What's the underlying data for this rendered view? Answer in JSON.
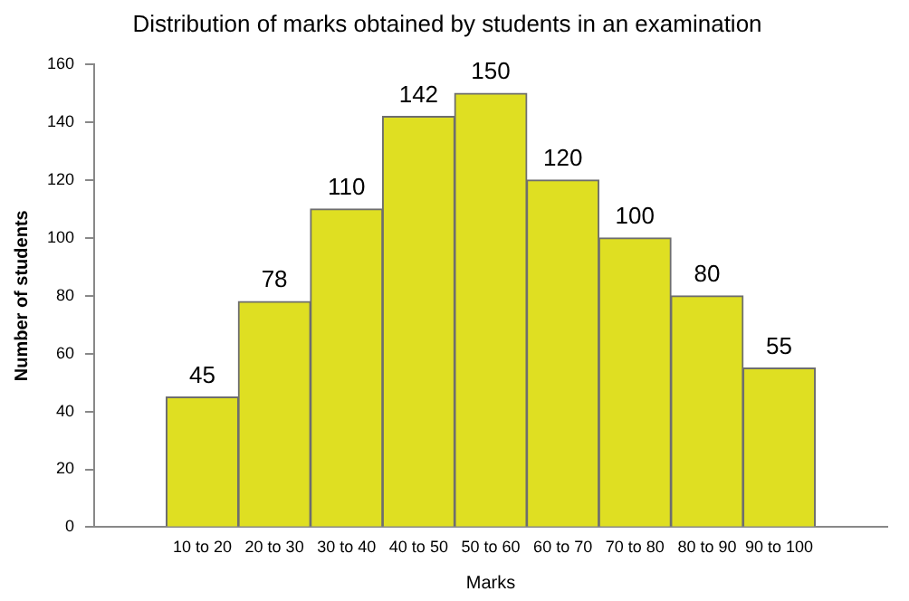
{
  "chart_data": {
    "type": "bar",
    "title": "Distribution of marks obtained by students in an examination",
    "xlabel": "Marks",
    "ylabel": "Number of students",
    "categories": [
      null,
      "10 to 20",
      "20 to 30",
      "30 to 40",
      "40 to 50",
      "50 to 60",
      "60 to 70",
      "70 to 80",
      "80 to 90",
      "90 to 100",
      null
    ],
    "values": [
      null,
      45,
      78,
      110,
      142,
      150,
      120,
      100,
      80,
      55,
      null
    ],
    "color": "#dfdf22",
    "ylim": [
      0,
      160
    ],
    "yticks": [
      0,
      20,
      40,
      60,
      80,
      100,
      120,
      140,
      160
    ],
    "data_labels": true,
    "legend": false
  }
}
